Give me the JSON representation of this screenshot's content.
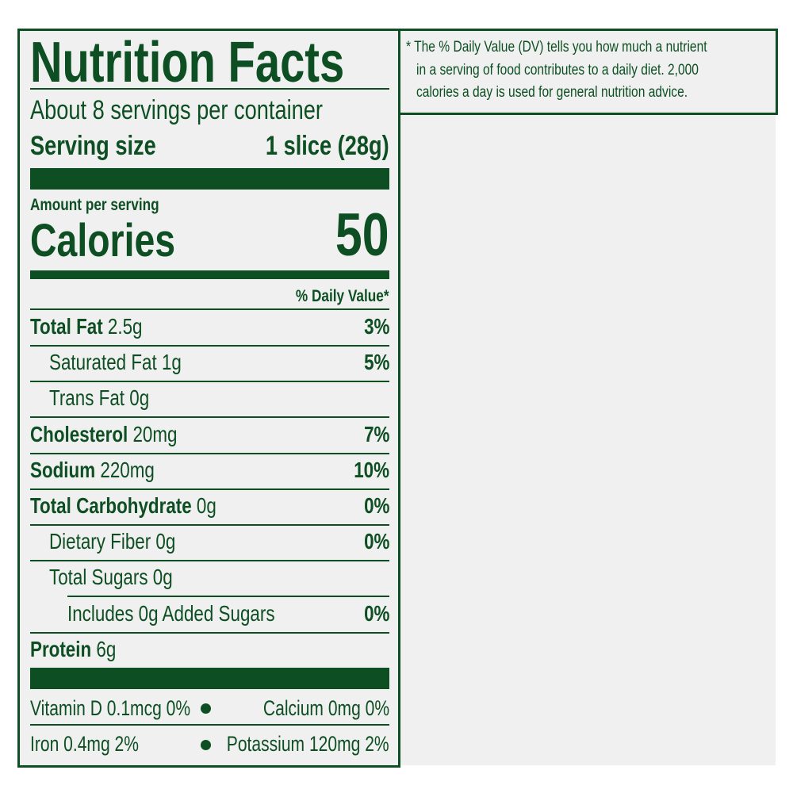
{
  "label": {
    "title": "Nutrition Facts",
    "servings": "About 8 servings per container",
    "serving_size_label": "Serving size",
    "serving_size_value": "1 slice (28g)",
    "amount_per_serving": "Amount per serving",
    "calories_label": "Calories",
    "calories_value": "50",
    "daily_value_header": "% Daily Value*",
    "nutrients": [
      {
        "name": "Total Fat",
        "amount": "2.5g",
        "dv": "3%"
      },
      {
        "name": "Saturated Fat 1g",
        "dv": "5%"
      },
      {
        "name": "Trans Fat 0g"
      },
      {
        "name": "Cholesterol",
        "amount": "20mg",
        "dv": "7%"
      },
      {
        "name": "Sodium",
        "amount": "220mg",
        "dv": "10%"
      },
      {
        "name": "Total Carbohydrate",
        "amount": "0g",
        "dv": "0%"
      },
      {
        "name": "Dietary Fiber 0g",
        "dv": "0%"
      },
      {
        "name": "Total Sugars 0g"
      },
      {
        "name": "Includes 0g Added Sugars",
        "dv": "0%"
      },
      {
        "name": "Protein",
        "amount": "6g"
      }
    ],
    "micros": [
      "Vitamin D 0.1mcg 0%",
      "Calcium 0mg 0%",
      "Iron 0.4mg 2%",
      "Potassium 120mg 2%"
    ]
  },
  "footnote": {
    "lines": [
      "* The % Daily Value (DV) tells you how much a nutrient",
      "in a serving of food contributes to a daily diet. 2,000",
      "calories a day is used for general nutrition advice."
    ]
  },
  "colors": {
    "ink": "#0d4f22",
    "background": "#f0f0f0"
  }
}
